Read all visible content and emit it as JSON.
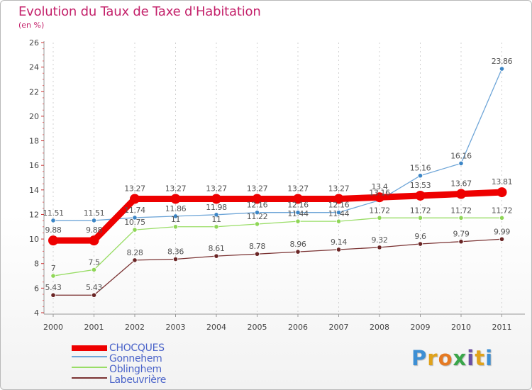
{
  "title": "Evolution du Taux de Taxe d'Habitation",
  "unit": "(en %)",
  "logo": {
    "letters": [
      "P",
      "r",
      "o",
      "x",
      "i",
      "t",
      "i"
    ],
    "colors": [
      "#3d8fd4",
      "#e0a21b",
      "#e57a23",
      "#3aa64a",
      "#6a4fa3",
      "#e0a21b",
      "#3d8fd4"
    ]
  },
  "chart_data": {
    "type": "line",
    "title": "Evolution du Taux de Taxe d'Habitation",
    "ylabel": "(en %)",
    "xlabel": "",
    "ylim": [
      4,
      26
    ],
    "yticks": [
      4,
      6,
      8,
      10,
      12,
      14,
      16,
      18,
      20,
      22,
      24,
      26
    ],
    "categories": [
      "2000",
      "2001",
      "2002",
      "2003",
      "2004",
      "2005",
      "2006",
      "2007",
      "2008",
      "2009",
      "2010",
      "2011"
    ],
    "legend_position": "bottom-left",
    "series": [
      {
        "name": "CHOCQUES",
        "color": "#ee0000",
        "values": [
          9.88,
          9.88,
          13.27,
          13.27,
          13.27,
          13.27,
          13.27,
          13.27,
          13.4,
          13.53,
          13.67,
          13.81
        ],
        "labels": [
          "9.88",
          "9.88",
          "13.27",
          "13.27",
          "13.27",
          "13.27",
          "13.27",
          "13.27",
          "13.4",
          "13.53",
          "13.67",
          "13.81"
        ]
      },
      {
        "name": "Gonnehem",
        "color": "#6fa6d8",
        "values": [
          11.51,
          11.51,
          11.74,
          11.86,
          11.98,
          12.16,
          12.16,
          12.16,
          13.16,
          15.16,
          16.16,
          23.86
        ],
        "labels": [
          "11.51",
          "11.51",
          "11.74",
          "11.86",
          "11.98",
          "12.16",
          "12.16",
          "12.16",
          "13.16",
          "15.16",
          "16.16",
          "23.86"
        ]
      },
      {
        "name": "Oblinghem",
        "color": "#99dd66",
        "values": [
          7,
          7.5,
          10.75,
          11,
          11,
          11.22,
          11.44,
          11.44,
          11.72,
          11.72,
          11.72,
          11.72
        ],
        "labels": [
          "7",
          "7.5",
          "10.75",
          "11",
          "11",
          "11.22",
          "11.44",
          "11.44",
          "11.72",
          "11.72",
          "11.72",
          "11.72"
        ]
      },
      {
        "name": "Labeuvrière",
        "color": "#7a3232",
        "values": [
          5.43,
          5.43,
          8.28,
          8.36,
          8.61,
          8.78,
          8.96,
          9.14,
          9.32,
          9.6,
          9.79,
          9.99
        ],
        "labels": [
          "5.43",
          "5.43",
          "8.28",
          "8.36",
          "8.61",
          "8.78",
          "8.96",
          "9.14",
          "9.32",
          "9.6",
          "9.79",
          "9.99"
        ]
      }
    ]
  }
}
